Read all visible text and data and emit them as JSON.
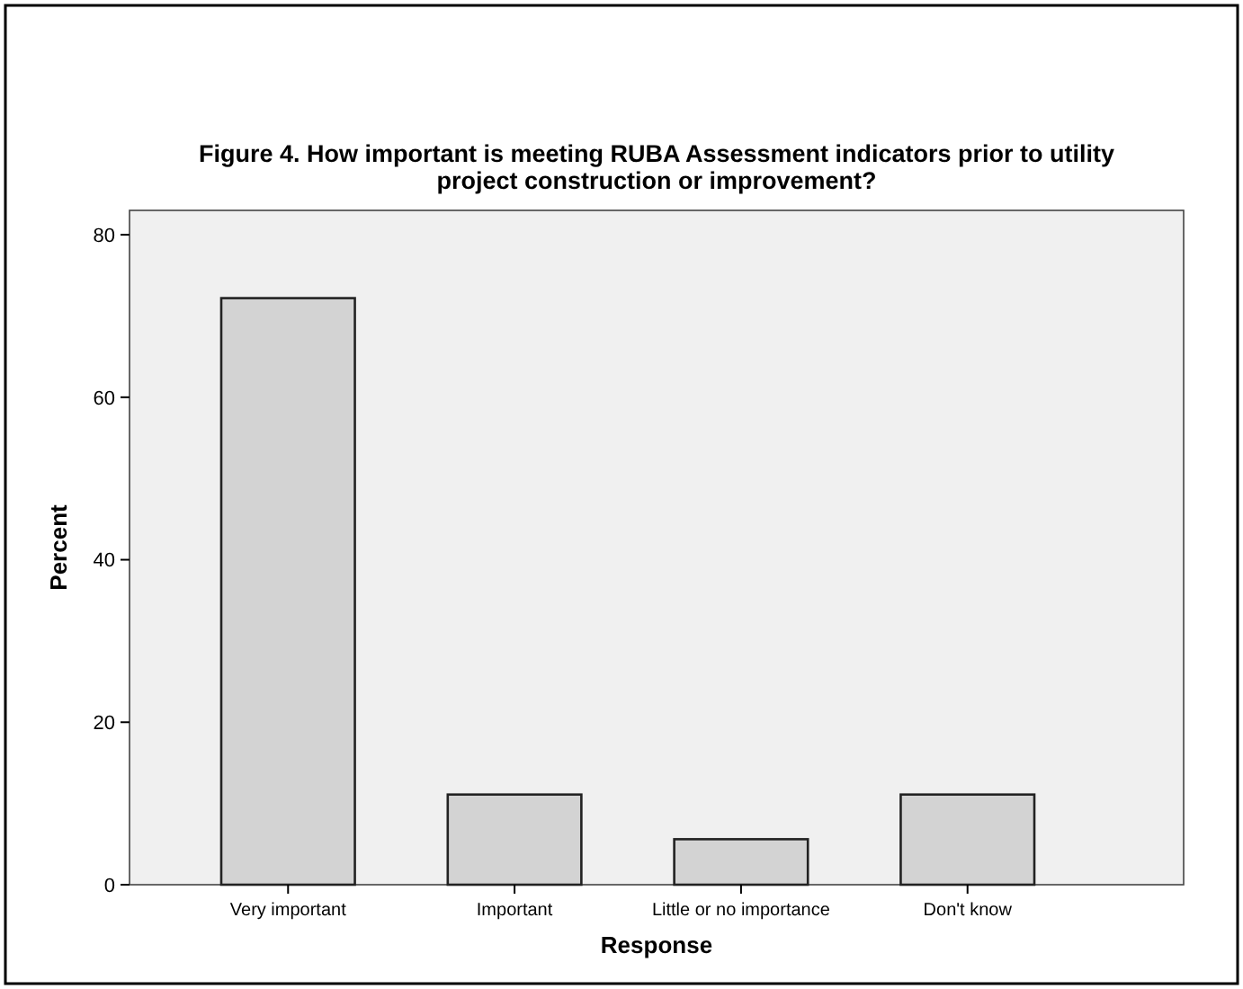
{
  "chart_data": {
    "type": "bar",
    "title": "Figure 4.  How important is meeting RUBA Assessment indicators prior to utility project construction or improvement?",
    "xlabel": "Response",
    "ylabel": "Percent",
    "categories": [
      "Very important",
      "Important",
      "Little or no importance",
      "Don't know"
    ],
    "values": [
      72.2,
      11.1,
      5.6,
      11.1
    ],
    "color": "#d3d3d3",
    "ylim": [
      0,
      83
    ],
    "yticks": [
      0,
      20,
      40,
      60,
      80
    ],
    "grid": false
  }
}
